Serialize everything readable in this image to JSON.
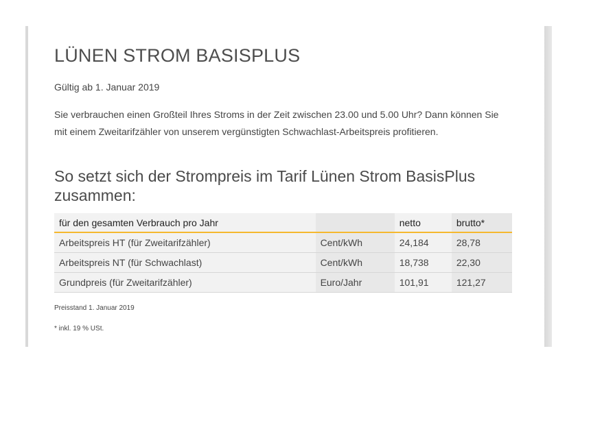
{
  "page": {
    "title": "LÜNEN STROM BASISPLUS",
    "valid_from": "Gültig ab 1. Januar 2019",
    "intro": "Sie verbrauchen einen Großteil Ihres Stroms in der Zeit zwischen 23.00 und 5.00 Uhr? Dann können Sie mit einem Zweitarifzähler von unserem vergünstigten Schwachlast-Arbeitspreis profitieren.",
    "subtitle": "So setzt sich der Strompreis im Tarif Lünen Strom BasisPlus zusammen:"
  },
  "table": {
    "headers": [
      "für den gesamten Verbrauch pro Jahr",
      "",
      "netto",
      "brutto*"
    ],
    "rows": [
      {
        "label": "Arbeitspreis HT (für Zweitarifzähler)",
        "unit": "Cent/kWh",
        "netto": "24,184",
        "brutto": "28,78"
      },
      {
        "label": "Arbeitspreis NT (für Schwachlast)",
        "unit": "Cent/kWh",
        "netto": "18,738",
        "brutto": "22,30"
      },
      {
        "label": "Grundpreis (für Zweitarifzähler)",
        "unit": "Euro/Jahr",
        "netto": "101,91",
        "brutto": "121,27"
      }
    ]
  },
  "notes": {
    "price_date": "Preisstand 1. Januar 2019",
    "vat": "* inkl. 19 % USt."
  },
  "colors": {
    "accent_line": "#f5b82e",
    "table_bg": "#f2f2f2",
    "table_bg_alt": "#e8e8e8"
  }
}
